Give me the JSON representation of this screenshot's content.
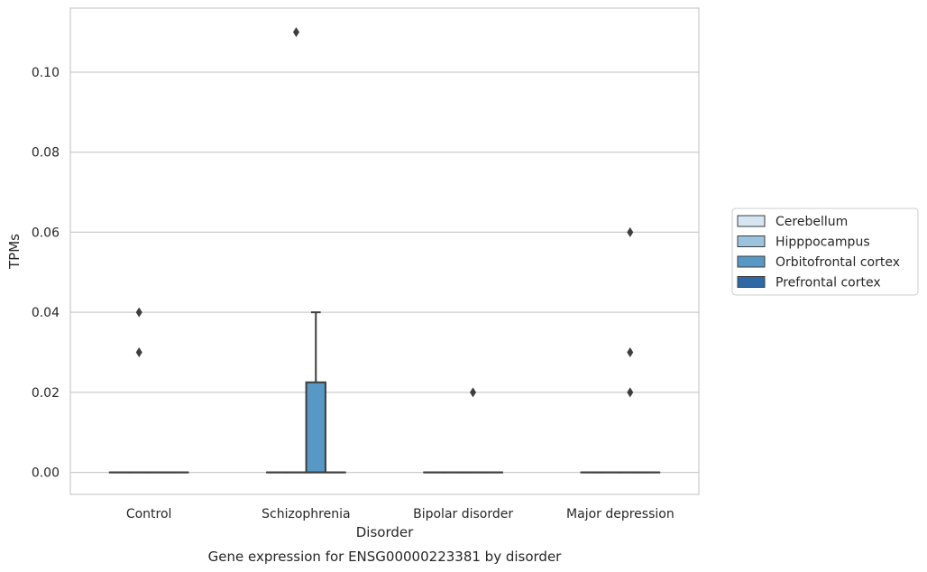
{
  "chart_data": {
    "type": "boxplot",
    "title": "Gene expression for ENSG00000223381 by disorder",
    "xlabel": "Disorder",
    "ylabel": "TPMs",
    "ylim": [
      -0.0055,
      0.116
    ],
    "yticks": [
      0.0,
      0.02,
      0.04,
      0.06,
      0.08,
      0.1
    ],
    "ytick_labels": [
      "0.00",
      "0.02",
      "0.04",
      "0.06",
      "0.08",
      "0.10"
    ],
    "grid": "horizontal",
    "legend_position": "right",
    "categories": [
      "Control",
      "Schizophrenia",
      "Bipolar disorder",
      "Major depression"
    ],
    "series": [
      {
        "name": "Cerebellum",
        "color": "#d6e5f2"
      },
      {
        "name": "Hipppocampus",
        "color": "#9bc3de"
      },
      {
        "name": "Orbitofrontal cortex",
        "color": "#5898c5"
      },
      {
        "name": "Prefrontal cortex",
        "color": "#2e69a6"
      }
    ],
    "boxes": [
      {
        "category": 0,
        "series": 0,
        "q1": 0,
        "median": 0,
        "q3": 0,
        "whisker_low": 0,
        "whisker_high": 0,
        "outliers": []
      },
      {
        "category": 0,
        "series": 1,
        "q1": 0,
        "median": 0,
        "q3": 0,
        "whisker_low": 0,
        "whisker_high": 0,
        "outliers": [
          0.04,
          0.03
        ]
      },
      {
        "category": 0,
        "series": 2,
        "q1": 0,
        "median": 0,
        "q3": 0,
        "whisker_low": 0,
        "whisker_high": 0,
        "outliers": []
      },
      {
        "category": 0,
        "series": 3,
        "q1": 0,
        "median": 0,
        "q3": 0,
        "whisker_low": 0,
        "whisker_high": 0,
        "outliers": []
      },
      {
        "category": 1,
        "series": 0,
        "q1": 0,
        "median": 0,
        "q3": 0,
        "whisker_low": 0,
        "whisker_high": 0,
        "outliers": []
      },
      {
        "category": 1,
        "series": 1,
        "q1": 0,
        "median": 0,
        "q3": 0,
        "whisker_low": 0,
        "whisker_high": 0,
        "outliers": [
          0.11
        ]
      },
      {
        "category": 1,
        "series": 2,
        "q1": 0,
        "median": 0,
        "q3": 0.0225,
        "whisker_low": 0,
        "whisker_high": 0.04,
        "outliers": []
      },
      {
        "category": 1,
        "series": 3,
        "q1": 0,
        "median": 0,
        "q3": 0,
        "whisker_low": 0,
        "whisker_high": 0,
        "outliers": []
      },
      {
        "category": 2,
        "series": 0,
        "q1": 0,
        "median": 0,
        "q3": 0,
        "whisker_low": 0,
        "whisker_high": 0,
        "outliers": []
      },
      {
        "category": 2,
        "series": 1,
        "q1": 0,
        "median": 0,
        "q3": 0,
        "whisker_low": 0,
        "whisker_high": 0,
        "outliers": []
      },
      {
        "category": 2,
        "series": 2,
        "q1": 0,
        "median": 0,
        "q3": 0,
        "whisker_low": 0,
        "whisker_high": 0,
        "outliers": [
          0.02
        ]
      },
      {
        "category": 2,
        "series": 3,
        "q1": 0,
        "median": 0,
        "q3": 0,
        "whisker_low": 0,
        "whisker_high": 0,
        "outliers": []
      },
      {
        "category": 3,
        "series": 0,
        "q1": 0,
        "median": 0,
        "q3": 0,
        "whisker_low": 0,
        "whisker_high": 0,
        "outliers": []
      },
      {
        "category": 3,
        "series": 1,
        "q1": 0,
        "median": 0,
        "q3": 0,
        "whisker_low": 0,
        "whisker_high": 0,
        "outliers": []
      },
      {
        "category": 3,
        "series": 2,
        "q1": 0,
        "median": 0,
        "q3": 0,
        "whisker_low": 0,
        "whisker_high": 0,
        "outliers": [
          0.06,
          0.03,
          0.02
        ]
      },
      {
        "category": 3,
        "series": 3,
        "q1": 0,
        "median": 0,
        "q3": 0,
        "whisker_low": 0,
        "whisker_high": 0,
        "outliers": []
      }
    ]
  }
}
